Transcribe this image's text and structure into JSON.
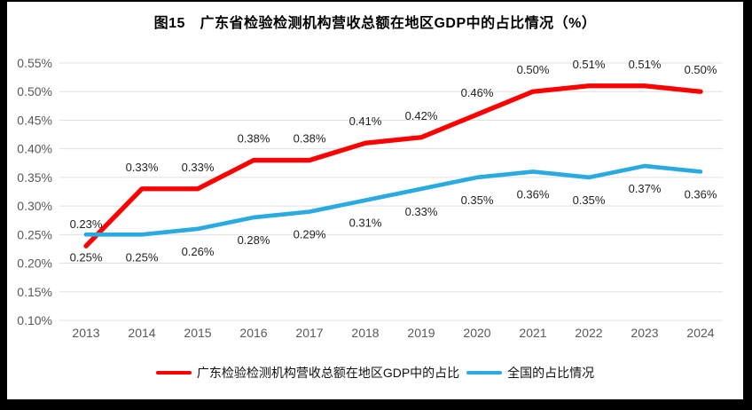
{
  "chart_data": {
    "type": "line",
    "title": "图15　广东省检验检测机构营收总额在地区GDP中的占比情况（%）",
    "categories": [
      "2013",
      "2014",
      "2015",
      "2016",
      "2017",
      "2018",
      "2019",
      "2020",
      "2021",
      "2022",
      "2023",
      "2024"
    ],
    "series": [
      {
        "name": "广东检验检测机构营收总额在地区GDP中的占比",
        "color": "#fe0000",
        "values": [
          0.23,
          0.33,
          0.33,
          0.38,
          0.38,
          0.41,
          0.42,
          0.46,
          0.5,
          0.51,
          0.51,
          0.5
        ],
        "point_labels": [
          "0.23%",
          "0.33%",
          "0.33%",
          "0.38%",
          "0.38%",
          "0.41%",
          "0.42%",
          "0.46%",
          "0.50%",
          "0.51%",
          "0.51%",
          "0.50%"
        ]
      },
      {
        "name": "全国的占比情况",
        "color": "#29abe2",
        "values": [
          0.25,
          0.25,
          0.26,
          0.28,
          0.29,
          0.31,
          0.33,
          0.35,
          0.36,
          0.35,
          0.37,
          0.36
        ],
        "point_labels": [
          "0.25%",
          "0.25%",
          "0.26%",
          "0.28%",
          "0.29%",
          "0.31%",
          "0.33%",
          "0.35%",
          "0.36%",
          "0.35%",
          "0.37%",
          "0.36%"
        ]
      }
    ],
    "xlabel": "",
    "ylabel": "",
    "ylim": [
      0.1,
      0.55
    ],
    "yticks": [
      0.55,
      0.5,
      0.45,
      0.4,
      0.35,
      0.3,
      0.25,
      0.2,
      0.15,
      0.1
    ],
    "ytick_labels": [
      "0.55%",
      "0.50%",
      "0.45%",
      "0.40%",
      "0.35%",
      "0.30%",
      "0.25%",
      "0.20%",
      "0.15%",
      "0.10%"
    ],
    "unit": "%",
    "grid": "horizontal",
    "gridline_color": "#e0e0e0",
    "legend_position": "bottom"
  }
}
